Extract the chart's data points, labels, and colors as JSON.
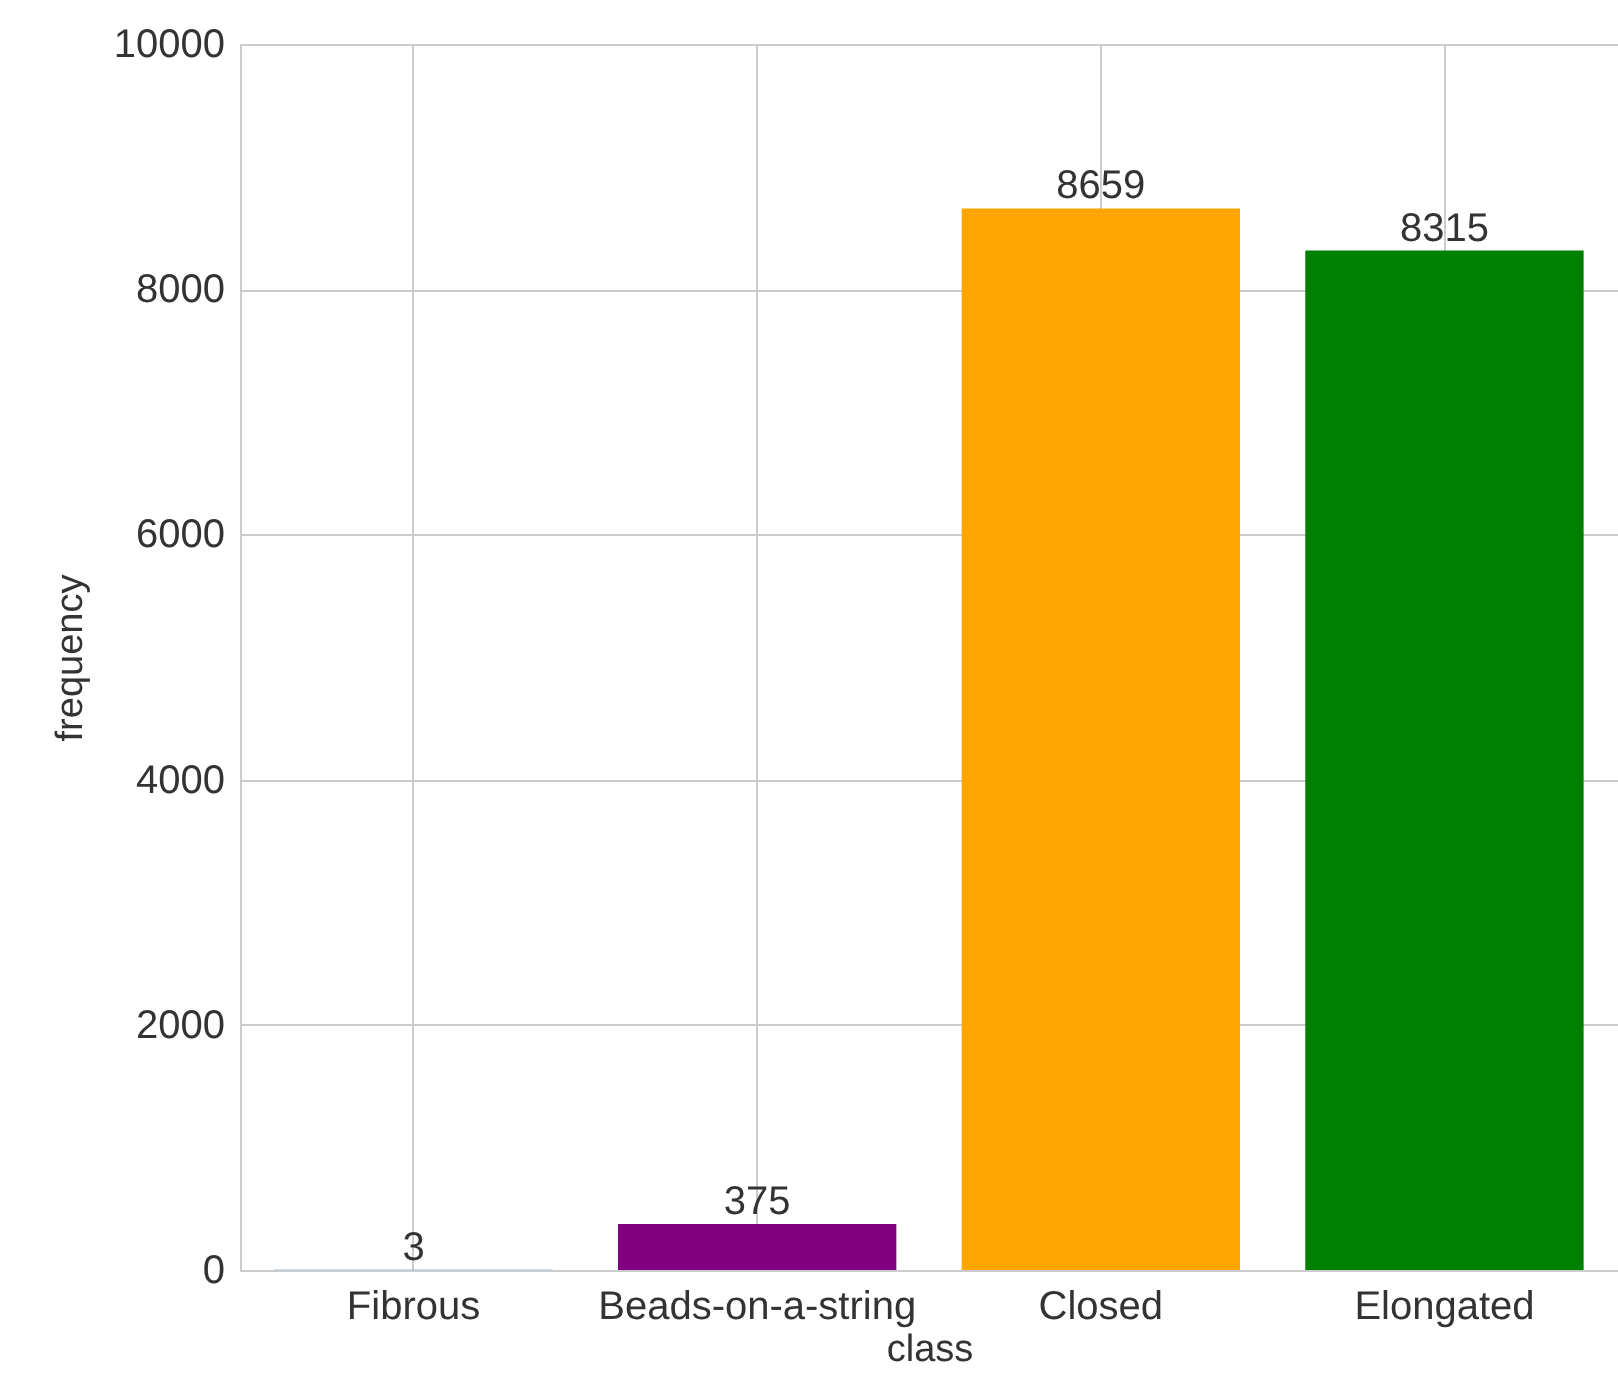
{
  "chart_data": {
    "type": "bar",
    "xlabel": "class",
    "ylabel": "frequency",
    "categories": [
      "Fibrous",
      "Beads-on-a-string",
      "Closed",
      "Elongated"
    ],
    "values": [
      3,
      375,
      8659,
      8315
    ],
    "colors": [
      "#1f77b4",
      "#800080",
      "#ffa500",
      "#008000"
    ],
    "ylim": [
      0,
      10000
    ],
    "yticks": [
      0,
      2000,
      4000,
      6000,
      8000,
      10000
    ],
    "grid": true,
    "data_labels": true
  }
}
